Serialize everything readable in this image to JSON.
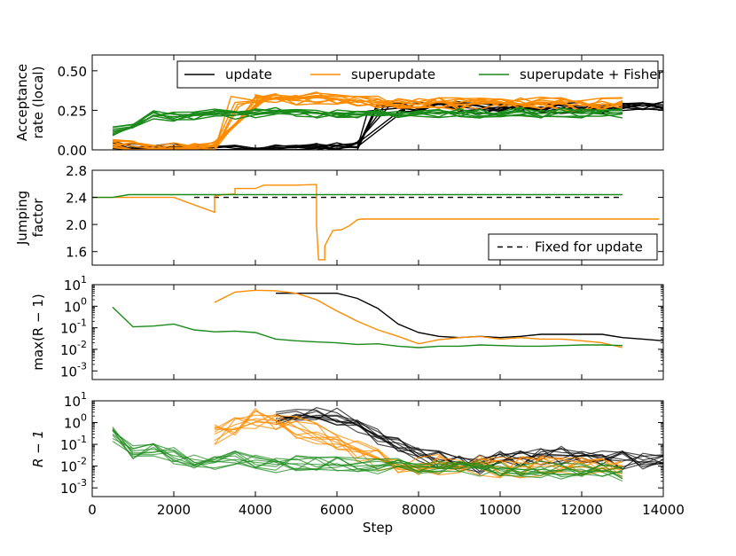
{
  "colors": {
    "update": "#000000",
    "superupdate": "#ff8c00",
    "fisher": "#1a8a1a",
    "frame": "#000000"
  },
  "chart_data": [
    {
      "type": "line",
      "ylabel_lines": [
        "Acceptance",
        "rate (local)"
      ],
      "xlim": [
        0,
        14000
      ],
      "ylim": [
        0,
        0.6
      ],
      "yscale": "linear",
      "yticks": [
        0.0,
        0.25,
        0.5
      ],
      "ytick_labels": [
        "0.00",
        "0.25",
        "0.50"
      ],
      "legend": {
        "placement": "top-right",
        "entries": [
          "update",
          "superupdate",
          "superupdate + Fisher"
        ]
      },
      "series": [
        {
          "name": "update",
          "color_key": "update",
          "width": 1.4,
          "opacity": 1,
          "x": [
            500,
            1000,
            1500,
            2000,
            2500,
            3000,
            3500,
            4000,
            4500,
            5000,
            5500,
            6000,
            6500,
            7000,
            7500,
            8000,
            8500,
            9000,
            9500,
            10000,
            10500,
            11000,
            11500,
            12000,
            12500,
            13000,
            13500,
            14000
          ],
          "y": [
            0.02,
            0.01,
            0.01,
            0.01,
            0.0,
            0.0,
            0.0,
            0.0,
            0.0,
            0.0,
            0.01,
            0.01,
            0.02,
            0.28,
            0.27,
            0.27,
            0.27,
            0.27,
            0.26,
            0.27,
            0.26,
            0.27,
            0.26,
            0.27,
            0.26,
            0.27,
            0.28,
            0.27
          ],
          "spread": 0.035,
          "count": 8,
          "shift": 500
        },
        {
          "name": "superupdate",
          "color_key": "superupdate",
          "width": 1.4,
          "opacity": 1,
          "x": [
            500,
            1000,
            1500,
            2000,
            2500,
            3000,
            3500,
            4000,
            4500,
            5000,
            5500,
            6000,
            6500,
            7000,
            7500,
            8000,
            8500,
            9000,
            9500,
            10000,
            10500,
            11000,
            11500,
            12000,
            12500,
            13000
          ],
          "y": [
            0.05,
            0.02,
            0.01,
            0.01,
            0.01,
            0.02,
            0.3,
            0.31,
            0.33,
            0.32,
            0.33,
            0.32,
            0.31,
            0.3,
            0.3,
            0.29,
            0.3,
            0.29,
            0.29,
            0.3,
            0.29,
            0.3,
            0.29,
            0.28,
            0.29,
            0.29
          ],
          "spread": 0.04,
          "count": 10,
          "shift": 500
        },
        {
          "name": "superupdate + Fisher",
          "color_key": "fisher",
          "width": 1.4,
          "opacity": 1,
          "x": [
            500,
            1000,
            1500,
            2000,
            2500,
            3000,
            3500,
            4000,
            4500,
            5000,
            5500,
            6000,
            6500,
            7000,
            7500,
            8000,
            8500,
            9000,
            9500,
            10000,
            10500,
            11000,
            11500,
            12000,
            12500,
            13000
          ],
          "y": [
            0.12,
            0.14,
            0.22,
            0.21,
            0.22,
            0.23,
            0.22,
            0.23,
            0.24,
            0.24,
            0.23,
            0.23,
            0.22,
            0.23,
            0.23,
            0.24,
            0.23,
            0.24,
            0.23,
            0.23,
            0.24,
            0.23,
            0.24,
            0.23,
            0.24,
            0.23
          ],
          "spread": 0.03,
          "count": 8,
          "shift": 0
        }
      ]
    },
    {
      "type": "line",
      "ylabel_lines": [
        "Jumping",
        "factor"
      ],
      "xlim": [
        0,
        14000
      ],
      "ylim": [
        1.4,
        2.8
      ],
      "yscale": "linear",
      "yticks": [
        1.6,
        2.0,
        2.4,
        2.8
      ],
      "ytick_labels": [
        "1.6",
        "2.0",
        "2.4",
        "2.8"
      ],
      "legend": {
        "placement": "bottom-right",
        "entries": [
          "Fixed for update"
        ]
      },
      "series": [
        {
          "name": "Fixed for update",
          "color_key": "update",
          "dashed": true,
          "width": 1.4,
          "x": [
            2500,
            13000
          ],
          "y": [
            2.4,
            2.4
          ]
        },
        {
          "name": "superupdate",
          "color_key": "superupdate",
          "width": 1.4,
          "x": [
            0,
            2000,
            3000,
            3000,
            3200,
            3500,
            3500,
            4000,
            4200,
            4500,
            5000,
            5500,
            5500,
            5550,
            5550,
            5700,
            5700,
            5800,
            5900,
            6000,
            6100,
            6300,
            6500,
            6600,
            7000,
            13900
          ],
          "y": [
            2.4,
            2.4,
            2.18,
            2.42,
            2.44,
            2.45,
            2.53,
            2.53,
            2.58,
            2.58,
            2.58,
            2.59,
            1.98,
            1.48,
            1.48,
            1.48,
            1.68,
            1.8,
            1.91,
            1.92,
            1.92,
            1.98,
            2.07,
            2.08,
            2.08,
            2.08
          ]
        },
        {
          "name": "superupdate + Fisher",
          "color_key": "fisher",
          "width": 1.4,
          "x": [
            0,
            500,
            900,
            13000
          ],
          "y": [
            2.4,
            2.4,
            2.44,
            2.44
          ]
        }
      ]
    },
    {
      "type": "line",
      "ylabel": "max(R − 1)",
      "xlim": [
        0,
        14000
      ],
      "ylim": [
        -3.4,
        1
      ],
      "yscale": "log10",
      "yticks": [
        1,
        0,
        -1,
        -2,
        -3
      ],
      "ytick_labels": [
        {
          "base": "10",
          "exp": "1"
        },
        {
          "base": "10",
          "exp": "0"
        },
        {
          "base": "10",
          "exp": "-1"
        },
        {
          "base": "10",
          "exp": "-2"
        },
        {
          "base": "10",
          "exp": "-3"
        }
      ],
      "series": [
        {
          "name": "update",
          "color_key": "update",
          "width": 1.4,
          "x": [
            4500,
            5000,
            5500,
            6000,
            6500,
            7000,
            7500,
            8000,
            8500,
            9000,
            9500,
            10000,
            10500,
            11000,
            11500,
            12000,
            12500,
            13000,
            13500,
            14000
          ],
          "y": [
            4.0,
            4.0,
            4.0,
            4.0,
            2.3,
            0.8,
            0.15,
            0.06,
            0.04,
            0.035,
            0.04,
            0.035,
            0.04,
            0.05,
            0.05,
            0.05,
            0.05,
            0.035,
            0.03,
            0.025
          ]
        },
        {
          "name": "superupdate",
          "color_key": "superupdate",
          "width": 1.4,
          "x": [
            3000,
            3500,
            4000,
            4500,
            5000,
            5500,
            6000,
            6500,
            7000,
            7500,
            8000,
            8500,
            9000,
            9500,
            10000,
            10500,
            11000,
            11500,
            12000,
            12500,
            13000
          ],
          "y": [
            1.5,
            4.5,
            5.5,
            5.2,
            4.0,
            2.0,
            0.6,
            0.2,
            0.08,
            0.04,
            0.018,
            0.028,
            0.035,
            0.04,
            0.03,
            0.035,
            0.03,
            0.03,
            0.025,
            0.02,
            0.012
          ]
        },
        {
          "name": "superupdate + Fisher",
          "color_key": "fisher",
          "width": 1.4,
          "x": [
            500,
            1000,
            1500,
            2000,
            2500,
            3000,
            3500,
            4000,
            4500,
            5000,
            5500,
            6000,
            6500,
            7000,
            7500,
            8000,
            8500,
            9000,
            9500,
            10000,
            10500,
            11000,
            11500,
            12000,
            12500,
            13000
          ],
          "y": [
            0.9,
            0.11,
            0.12,
            0.15,
            0.08,
            0.065,
            0.07,
            0.06,
            0.03,
            0.025,
            0.022,
            0.02,
            0.017,
            0.018,
            0.014,
            0.012,
            0.014,
            0.014,
            0.016,
            0.015,
            0.014,
            0.014,
            0.015,
            0.016,
            0.016,
            0.015
          ]
        }
      ]
    },
    {
      "type": "line",
      "ylabel": "R − 1",
      "xlabel": "Step",
      "xlim": [
        0,
        14000
      ],
      "ylim": [
        -3.4,
        1
      ],
      "yscale": "log10",
      "xticks": [
        0,
        2000,
        4000,
        6000,
        8000,
        10000,
        12000,
        14000
      ],
      "xtick_labels": [
        "0",
        "2000",
        "4000",
        "6000",
        "8000",
        "10000",
        "12000",
        "14000"
      ],
      "yticks": [
        1,
        0,
        -1,
        -2,
        -3
      ],
      "ytick_labels": [
        {
          "base": "10",
          "exp": "1"
        },
        {
          "base": "10",
          "exp": "0"
        },
        {
          "base": "10",
          "exp": "-1"
        },
        {
          "base": "10",
          "exp": "-2"
        },
        {
          "base": "10",
          "exp": "-3"
        }
      ],
      "series": [
        {
          "name": "update",
          "color_key": "update",
          "width": 1.2,
          "opacity": 0.7,
          "x": [
            4500,
            5000,
            5500,
            6000,
            6500,
            7000,
            7500,
            8000,
            8500,
            9000,
            9500,
            10000,
            10500,
            11000,
            11500,
            12000,
            12500,
            13000,
            13500,
            14000
          ],
          "y": [
            1.2,
            1.5,
            1.8,
            2.0,
            0.8,
            0.25,
            0.07,
            0.04,
            0.02,
            0.015,
            0.012,
            0.018,
            0.025,
            0.03,
            0.03,
            0.03,
            0.03,
            0.02,
            0.015,
            0.012
          ],
          "spread": 0.45,
          "count": 10,
          "log": true
        },
        {
          "name": "superupdate",
          "color_key": "superupdate",
          "width": 1.2,
          "opacity": 0.75,
          "x": [
            3000,
            3500,
            4000,
            4500,
            5000,
            5500,
            6000,
            6500,
            7000,
            7500,
            8000,
            8500,
            9000,
            9500,
            10000,
            10500,
            11000,
            11500,
            12000,
            12500,
            13000
          ],
          "y": [
            0.3,
            0.8,
            1.5,
            1.2,
            0.6,
            0.3,
            0.12,
            0.05,
            0.02,
            0.012,
            0.01,
            0.012,
            0.01,
            0.01,
            0.009,
            0.009,
            0.01,
            0.01,
            0.009,
            0.008,
            0.007
          ],
          "spread": 0.5,
          "count": 10,
          "log": true
        },
        {
          "name": "superupdate + Fisher",
          "color_key": "fisher",
          "width": 1.2,
          "opacity": 0.7,
          "x": [
            500,
            1000,
            1500,
            2000,
            2500,
            3000,
            3500,
            4000,
            4500,
            5000,
            5500,
            6000,
            6500,
            7000,
            7500,
            8000,
            8500,
            9000,
            9500,
            10000,
            10500,
            11000,
            11500,
            12000,
            12500,
            13000
          ],
          "y": [
            0.3,
            0.05,
            0.06,
            0.03,
            0.02,
            0.015,
            0.02,
            0.015,
            0.012,
            0.013,
            0.012,
            0.011,
            0.01,
            0.011,
            0.01,
            0.009,
            0.009,
            0.009,
            0.008,
            0.008,
            0.007,
            0.007,
            0.006,
            0.006,
            0.006,
            0.005
          ],
          "spread": 0.4,
          "count": 10,
          "log": true
        }
      ]
    }
  ]
}
